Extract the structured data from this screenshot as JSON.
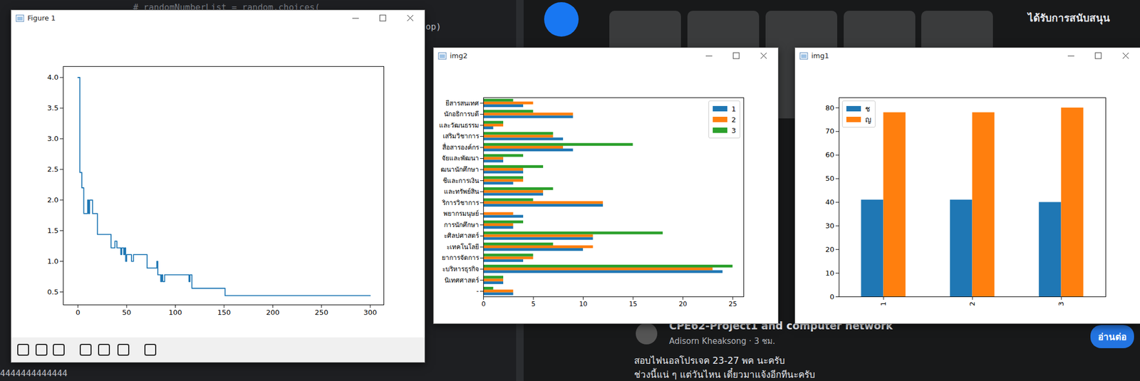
{
  "desktop": {
    "editor_lines": [
      "# randomNumberList = random.choices(",
      "op)",
      "4444444444444"
    ],
    "feed": {
      "sponsored": "ได้รับการสนับสนุน",
      "group": "CPE62-Project1 and computer network",
      "byline": "Adisorn Kheaksong · 3 ชม.",
      "post": [
        "สอบไฟนอลโปรเจค 23-27 พค  นะครับ",
        "ช่วงนี้แน่ ๆ แต่วันไหน เดี๋ยวมาแจ้งอีกทีนะครับ"
      ],
      "button": "อ่านต่อ"
    }
  },
  "chart_data": [
    {
      "type": "line",
      "title": "Figure 1",
      "line_style": "steps",
      "color": "#1f77b4",
      "x": [
        0,
        2,
        3,
        4,
        5,
        6,
        9,
        10,
        11,
        12,
        14,
        15,
        19,
        20,
        33,
        34,
        37,
        38,
        39,
        40,
        43,
        44,
        45,
        47,
        48,
        49,
        50,
        54,
        55,
        57,
        70,
        71,
        80,
        81,
        82,
        84,
        85,
        86,
        87,
        89,
        113,
        114,
        115,
        117,
        150,
        151,
        300
      ],
      "values": [
        4.0,
        2.45,
        2.45,
        2.2,
        2.2,
        1.78,
        1.78,
        2.0,
        1.78,
        2.0,
        2.0,
        1.78,
        1.78,
        1.44,
        1.44,
        1.22,
        1.22,
        1.33,
        1.33,
        1.22,
        1.22,
        1.11,
        1.22,
        1.11,
        1.22,
        1.0,
        1.11,
        1.11,
        1.0,
        1.11,
        1.11,
        0.89,
        0.89,
        1.0,
        0.78,
        0.78,
        0.67,
        0.78,
        0.67,
        0.78,
        0.78,
        0.67,
        0.78,
        0.56,
        0.56,
        0.44,
        0.44
      ],
      "xlim": [
        -15,
        314
      ],
      "ylim": [
        0.29,
        4.18
      ],
      "xticks": [
        0,
        50,
        100,
        150,
        200,
        250,
        300
      ],
      "yticks": [
        0.5,
        {
          "value": 1,
          "label": "1.0"
        },
        1.5,
        {
          "value": 2,
          "label": "2.0"
        },
        2.5,
        {
          "value": 3,
          "label": "3.0"
        },
        3.5,
        {
          "value": 4,
          "label": "4.0"
        }
      ]
    },
    {
      "type": "bar",
      "title": "img2",
      "orientation": "horizontal",
      "legend": "upper right",
      "categories": [
        "ยีสารสนเทศ",
        "นักอธิการบดี",
        "และวัฒนธรรม",
        "เสริมวิชาการ",
        "สื่อสารองค์กร",
        "จัยและพัฒนา",
        "ฒนานักศึกษา",
        "ชีและการเงิน",
        "และทรัพย์สิน",
        "ริการวิชาการ",
        "พยากรมนุษย์",
        "การนักศึกษา",
        "ะศิลปศาสตร์",
        "ะเทคโนโลยี",
        "ยาการจัดการ",
        "ะบริหารธุรกิจ",
        "นิเทศศาสตร์",
        "-"
      ],
      "series": [
        {
          "name": "1",
          "color": "#1f77b4",
          "values": [
            4,
            9,
            1,
            8,
            9,
            2,
            4,
            3,
            6,
            12,
            4,
            3,
            11,
            10,
            4,
            24,
            2,
            3
          ]
        },
        {
          "name": "2",
          "color": "#ff7f0e",
          "values": [
            5,
            9,
            2,
            7,
            8,
            2,
            4,
            4,
            6,
            12,
            3,
            3,
            11,
            11,
            5,
            23,
            2,
            3
          ]
        },
        {
          "name": "3",
          "color": "#2ca02c",
          "values": [
            3,
            5,
            2,
            7,
            15,
            4,
            6,
            4,
            7,
            5,
            0,
            4,
            18,
            7,
            5,
            25,
            2,
            1
          ]
        }
      ],
      "xlim": [
        0,
        26.1
      ],
      "xticks": [
        0,
        5,
        10,
        15,
        20,
        25
      ]
    },
    {
      "type": "bar",
      "title": "img1",
      "legend": "upper left",
      "categories": [
        "1",
        "2",
        "3"
      ],
      "series": [
        {
          "name": "ช",
          "color": "#1f77b4",
          "values": [
            41,
            41,
            40
          ]
        },
        {
          "name": "ญ",
          "color": "#ff7f0e",
          "values": [
            78,
            78,
            80
          ]
        }
      ],
      "ylim": [
        0,
        84.3
      ],
      "yticks": [
        0,
        10,
        20,
        30,
        40,
        50,
        60,
        70,
        80
      ]
    }
  ]
}
